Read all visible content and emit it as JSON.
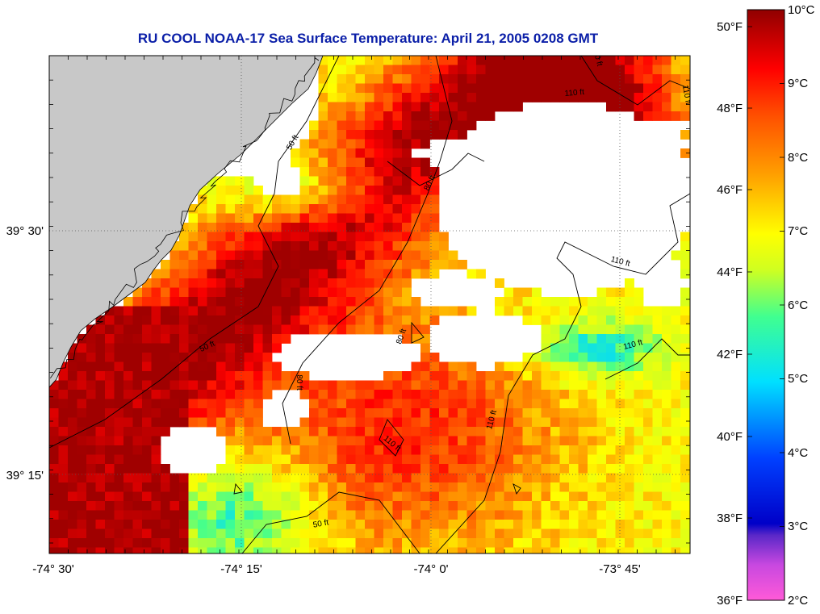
{
  "title": "RU COOL  NOAA-17  Sea Surface Temperature:  April 21, 2005 0208 GMT",
  "map": {
    "lon_ticks": [
      "-74° 30'",
      "-74° 15'",
      "-74° 0'",
      "-73° 45'"
    ],
    "lat_ticks": [
      "39° 30'",
      "39° 15'"
    ],
    "contour_labels": [
      "50 ft",
      "50 ft",
      "50 ft",
      "80 ft",
      "80 ft",
      "80 ft",
      "80 ft",
      "110 ft",
      "110 ft",
      "110 ft",
      "110 ft",
      "110 ft",
      "110 ft"
    ],
    "colors": {
      "land": "#c8c8c8",
      "no_data": "#ffffff",
      "frame": "#000000"
    }
  },
  "colorbar": {
    "celsius_labels": [
      "10°C",
      "9°C",
      "8°C",
      "7°C",
      "6°C",
      "5°C",
      "4°C",
      "3°C",
      "2°C"
    ],
    "fahrenheit_labels": [
      "50°F",
      "48°F",
      "46°F",
      "44°F",
      "42°F",
      "40°F",
      "38°F",
      "36°F"
    ],
    "range_celsius": [
      2,
      10
    ],
    "colormap": [
      "#ff5ad8",
      "#7a3cd0",
      "#0000c8",
      "#0050ff",
      "#00d8ff",
      "#40ff90",
      "#d0ff20",
      "#ffff00",
      "#ffa000",
      "#ff5000",
      "#ff0000",
      "#a00000"
    ]
  }
}
